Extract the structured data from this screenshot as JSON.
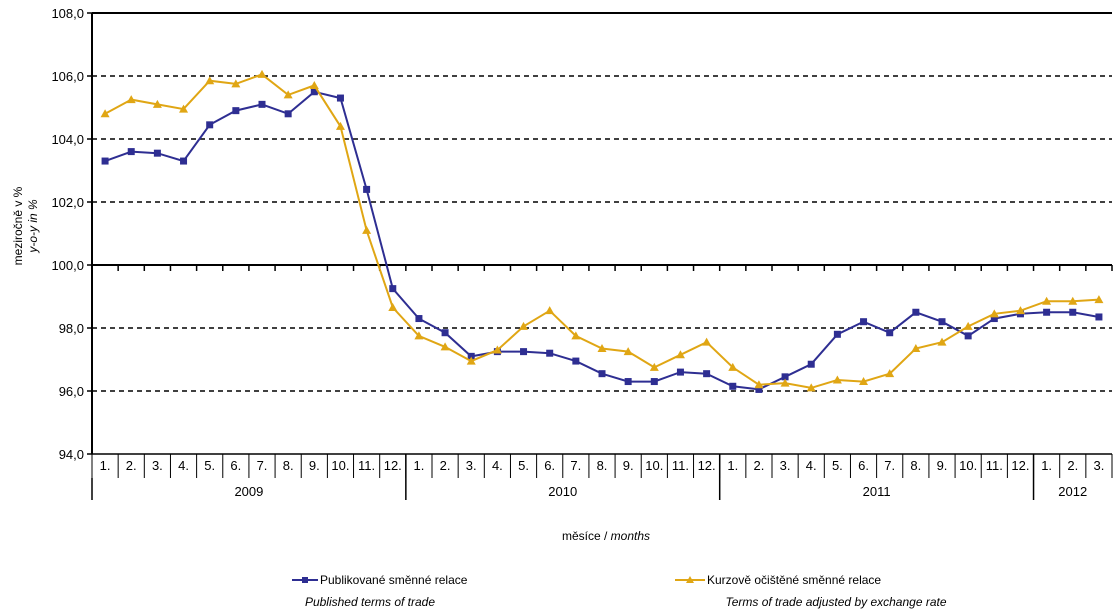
{
  "chart_data": {
    "type": "line",
    "ylabel": "meziročně v %",
    "ylabel_en": "y-o-y in %",
    "xlabel": "měsíce",
    "xlabel_en": "months",
    "xlabel_sep": " / ",
    "ylim": [
      94,
      108
    ],
    "yticks": [
      94,
      96,
      98,
      100,
      102,
      104,
      106,
      108
    ],
    "ytick_labels": [
      "94,0",
      "96,0",
      "98,0",
      "100,0",
      "102,0",
      "104,0",
      "106,0",
      "108,0"
    ],
    "grid": "dashed horizontal at 96, 98, 102, 104, 106; solid at 100",
    "categories": [
      "1.",
      "2.",
      "3.",
      "4.",
      "5.",
      "6.",
      "7.",
      "8.",
      "9.",
      "10.",
      "11.",
      "12.",
      "1.",
      "2.",
      "3.",
      "4.",
      "5.",
      "6.",
      "7.",
      "8.",
      "9.",
      "10.",
      "11.",
      "12.",
      "1.",
      "2.",
      "3.",
      "4.",
      "5.",
      "6.",
      "7.",
      "8.",
      "9.",
      "10.",
      "11.",
      "12.",
      "1.",
      "2.",
      "3."
    ],
    "years": [
      {
        "label": "2009",
        "months": 12
      },
      {
        "label": "2010",
        "months": 12
      },
      {
        "label": "2011",
        "months": 12
      },
      {
        "label": "2012",
        "months": 3
      }
    ],
    "series": [
      {
        "name": "Publikované směnné relace",
        "name_en": "Published terms of trade",
        "color": "#2e2e92",
        "marker": "square",
        "values": [
          103.3,
          103.6,
          103.55,
          103.3,
          104.45,
          104.9,
          105.1,
          104.8,
          105.5,
          105.3,
          102.4,
          99.25,
          98.3,
          97.85,
          97.1,
          97.25,
          97.25,
          97.2,
          96.95,
          96.55,
          96.3,
          96.3,
          96.6,
          96.55,
          96.15,
          96.05,
          96.45,
          96.85,
          97.8,
          98.2,
          97.85,
          98.5,
          98.2,
          97.75,
          98.3,
          98.45,
          98.5,
          98.5,
          98.35
        ]
      },
      {
        "name": "Kurzově očištěné směnné relace",
        "name_en": "Terms of trade adjusted by exchange rate",
        "color": "#e0a614",
        "marker": "triangle",
        "values": [
          104.8,
          105.25,
          105.1,
          104.95,
          105.85,
          105.75,
          106.05,
          105.4,
          105.7,
          104.4,
          101.1,
          98.65,
          97.75,
          97.4,
          96.95,
          97.3,
          98.05,
          98.55,
          97.75,
          97.35,
          97.25,
          96.75,
          97.15,
          97.55,
          96.75,
          96.2,
          96.25,
          96.1,
          96.35,
          96.3,
          96.55,
          97.35,
          97.55,
          98.05,
          98.45,
          98.55,
          98.85,
          98.85,
          98.9
        ]
      }
    ],
    "legend_position": "bottom"
  }
}
